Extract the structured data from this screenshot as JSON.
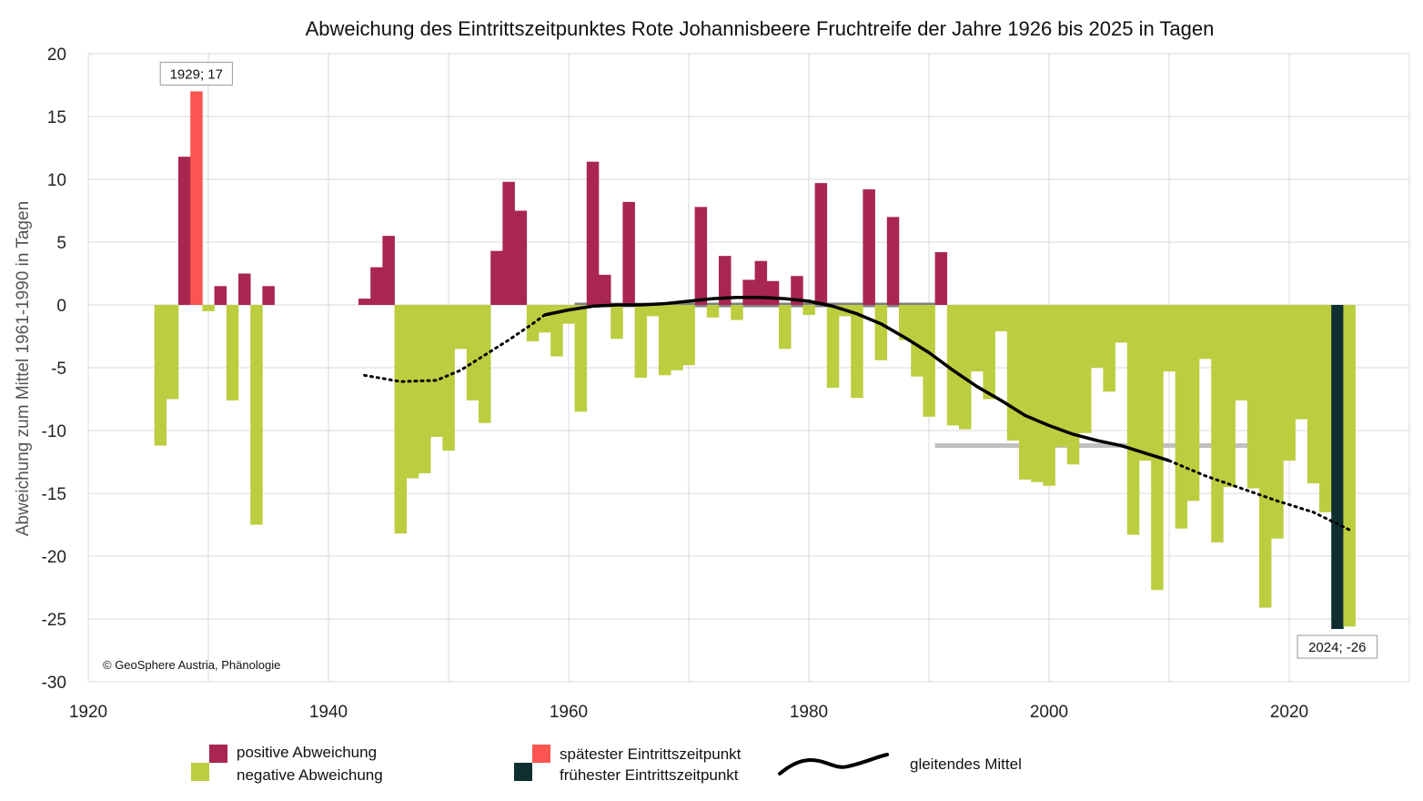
{
  "chart_data": {
    "type": "bar",
    "title": "Abweichung des Eintrittszeitpunktes Rote Johannisbeere Fruchtreife der Jahre 1926 bis 2025 in Tagen",
    "ylabel": "Abweichung zum Mittel 1961-1990 in Tagen",
    "xlabel": "",
    "xlim": [
      1920,
      2030
    ],
    "ylim": [
      -30,
      20
    ],
    "x_ticks": [
      1920,
      1940,
      1960,
      1980,
      2000,
      2020
    ],
    "y_ticks": [
      -30,
      -25,
      -20,
      -15,
      -10,
      -5,
      0,
      5,
      10,
      15,
      20
    ],
    "grid": true,
    "colors": {
      "positive": "#a8264f",
      "negative": "#bccd40",
      "latest": "#fa5550",
      "earliest": "#0f2e30",
      "moving_avg": "#000000",
      "ref_1961_1990": "#808080",
      "ref_1991_2020": "#c0c0c0",
      "grid": "#d9d9d9"
    },
    "series": [
      {
        "name": "Abweichung",
        "x": [
          1926,
          1927,
          1928,
          1929,
          1930,
          1931,
          1932,
          1933,
          1934,
          1935,
          1943,
          1944,
          1945,
          1946,
          1947,
          1948,
          1949,
          1950,
          1951,
          1952,
          1953,
          1954,
          1955,
          1956,
          1957,
          1958,
          1959,
          1960,
          1961,
          1962,
          1963,
          1964,
          1965,
          1966,
          1967,
          1968,
          1969,
          1970,
          1971,
          1972,
          1973,
          1974,
          1975,
          1976,
          1977,
          1978,
          1979,
          1980,
          1981,
          1982,
          1983,
          1984,
          1985,
          1986,
          1987,
          1988,
          1989,
          1990,
          1991,
          1992,
          1993,
          1994,
          1995,
          1996,
          1997,
          1998,
          1999,
          2000,
          2001,
          2002,
          2003,
          2004,
          2005,
          2006,
          2007,
          2008,
          2009,
          2010,
          2011,
          2012,
          2013,
          2014,
          2015,
          2016,
          2017,
          2018,
          2019,
          2020,
          2021,
          2022,
          2023,
          2024,
          2025
        ],
        "values": [
          -11.2,
          -7.5,
          11.8,
          17,
          -0.5,
          1.5,
          -7.6,
          2.5,
          -17.5,
          1.5,
          0.5,
          3,
          5.5,
          -18.2,
          -13.8,
          -13.4,
          -10.5,
          -11.6,
          -3.5,
          -7.6,
          -9.4,
          4.3,
          9.8,
          7.5,
          -2.9,
          -2.2,
          -4.1,
          -1.5,
          -8.5,
          11.4,
          2.4,
          -2.7,
          8.2,
          -5.8,
          -0.9,
          -5.6,
          -5.2,
          -4.8,
          7.8,
          -1,
          3.9,
          -1.2,
          2,
          3.5,
          1.9,
          -3.5,
          2.3,
          -0.8,
          9.7,
          -6.6,
          -0.9,
          -7.4,
          9.2,
          -4.4,
          7,
          -2.8,
          -5.7,
          -8.9,
          4.2,
          -9.6,
          -9.9,
          -5.3,
          -7.5,
          -2.1,
          -10.8,
          -13.9,
          -14.1,
          -14.4,
          -11.3,
          -12.7,
          -10.2,
          -5,
          -6.9,
          -3,
          -18.3,
          -12.4,
          -22.7,
          -5.3,
          -17.8,
          -15.6,
          -4.3,
          -18.9,
          -14.5,
          -7.6,
          -14.6,
          -24.1,
          -18.6,
          -12.4,
          -9.1,
          -14.2,
          -16.5,
          -25.8,
          -25.6
        ]
      }
    ],
    "special_bars": {
      "latest": 1929,
      "earliest": 2024
    },
    "moving_average": {
      "name": "gleitendes Mittel",
      "solid": {
        "x": [
          1958,
          1960,
          1962,
          1964,
          1966,
          1968,
          1970,
          1972,
          1974,
          1976,
          1978,
          1980,
          1982,
          1984,
          1986,
          1988,
          1990,
          1992,
          1994,
          1996,
          1998,
          2000,
          2002,
          2004,
          2006,
          2008,
          2010
        ],
        "y": [
          -0.8,
          -0.4,
          -0.1,
          0,
          0,
          0.1,
          0.3,
          0.5,
          0.6,
          0.6,
          0.5,
          0.3,
          -0.1,
          -0.7,
          -1.5,
          -2.6,
          -3.8,
          -5.2,
          -6.5,
          -7.6,
          -8.8,
          -9.6,
          -10.3,
          -10.8,
          -11.2,
          -11.8,
          -12.4
        ]
      },
      "dotted_start": {
        "x": [
          1943,
          1946,
          1949,
          1951,
          1953,
          1955,
          1957,
          1958
        ],
        "y": [
          -5.6,
          -6.1,
          -6,
          -5.2,
          -4,
          -2.8,
          -1.5,
          -0.8
        ]
      },
      "dotted_end": {
        "x": [
          2010,
          2013,
          2016,
          2019,
          2022,
          2025
        ],
        "y": [
          -12.4,
          -13.6,
          -14.6,
          -15.6,
          -16.5,
          -17.9
        ]
      }
    },
    "reference_lines": [
      {
        "x_start": 1961,
        "x_end": 1990,
        "y": 0,
        "color": "#808080"
      },
      {
        "x_start": 1991,
        "x_end": 2020,
        "y": -11.2,
        "color": "#c0c0c0"
      }
    ],
    "annotations": [
      {
        "text": "1929; 17",
        "x": 1929,
        "y": 17,
        "position": "above"
      },
      {
        "text": "2024; -26",
        "x": 2024,
        "y": -25.8,
        "position": "below"
      }
    ],
    "copyright": "© GeoSphere Austria, Phänologie",
    "legend": {
      "placement": "bottom",
      "items": [
        {
          "label": "positive Abweichung",
          "color": "#a8264f",
          "kind": "square"
        },
        {
          "label": "negative Abweichung",
          "color": "#bccd40",
          "kind": "square"
        },
        {
          "label": "spätester Eintrittszeitpunkt",
          "color": "#fa5550",
          "kind": "square"
        },
        {
          "label": "frühester Eintrittszeitpunkt",
          "color": "#0f2e30",
          "kind": "square"
        },
        {
          "label": "gleitendes Mittel",
          "color": "#000000",
          "kind": "line"
        }
      ]
    }
  }
}
